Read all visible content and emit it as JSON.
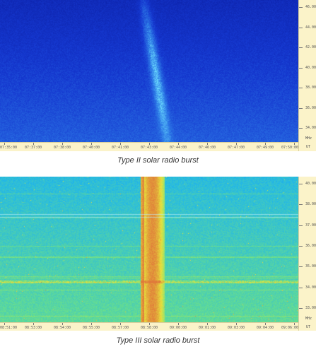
{
  "chart_data": [
    {
      "type": "heatmap",
      "caption": "Type II solar radio burst",
      "x_ticks": [
        "07:35:00",
        "07:37:00",
        "07:38:00",
        "07:40:00",
        "07:41:00",
        "07:43:00",
        "07:44:00",
        "07:46:00",
        "07:47:00",
        "07:49:00",
        "07:50:00"
      ],
      "x_unit": "UT",
      "y_ticks": [
        "46.00",
        "44.00",
        "42.00",
        "40.00",
        "38.00",
        "36.00",
        "34.00"
      ],
      "y_unit": "MHz",
      "colormap": [
        "#0a1a9c",
        "#1538d0",
        "#2f7fe8",
        "#6fe0ff"
      ],
      "features": [
        {
          "kind": "drifting-diagonal-burst",
          "x_range_fraction": [
            0.48,
            0.56
          ],
          "intensity": 0.6
        }
      ]
    },
    {
      "type": "heatmap",
      "caption": "Type III solar radio burst",
      "x_ticks": [
        "08:51:00",
        "08:53:00",
        "08:54:00",
        "08:55:00",
        "08:57:00",
        "08:58:00",
        "09:00:00",
        "09:01:00",
        "09:03:00",
        "09:04:00",
        "09:06:00"
      ],
      "x_unit": "UT",
      "y_ticks": [
        "40.00",
        "38.00",
        "37.00",
        "36.00",
        "35.00",
        "34.00",
        "33.00"
      ],
      "y_unit": "MHz",
      "colormap": [
        "#1d5fe0",
        "#22b7e8",
        "#6be08a",
        "#e6e23c",
        "#e07a3a"
      ],
      "features": [
        {
          "kind": "vertical-burst",
          "x_range_fraction": [
            0.47,
            0.55
          ],
          "intensity": 1.0
        },
        {
          "kind": "horizontal-interference",
          "y_fraction": 0.72,
          "intensity": 0.55
        }
      ]
    }
  ]
}
